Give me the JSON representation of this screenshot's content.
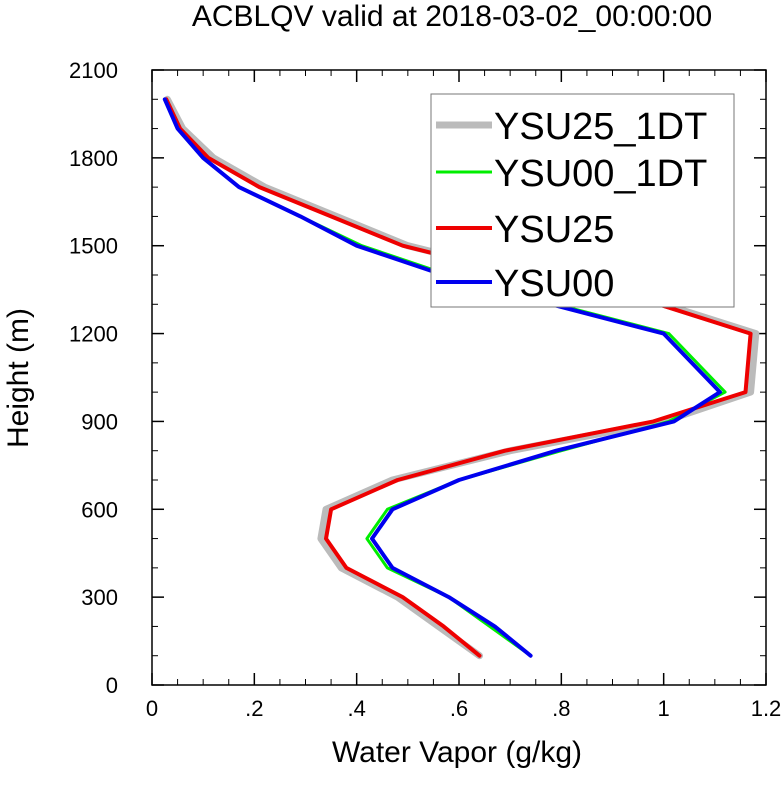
{
  "chart_data": {
    "type": "line",
    "title": "ACBLQV valid at 2018-03-02_00:00:00",
    "xlabel": "Water Vapor (g/kg)",
    "ylabel": "Height (m)",
    "xlim": [
      0,
      1.2
    ],
    "ylim": [
      0,
      2100
    ],
    "x_ticks": [
      0,
      0.2,
      0.4,
      0.6,
      0.8,
      1.0,
      1.2
    ],
    "x_tick_labels": [
      "0",
      ".2",
      ".4",
      ".6",
      ".8",
      "1",
      "1.2"
    ],
    "y_ticks": [
      0,
      300,
      600,
      900,
      1200,
      1500,
      1800,
      2100
    ],
    "y_tick_labels": [
      "0",
      "300",
      "600",
      "900",
      "1200",
      "1500",
      "1800",
      "2100"
    ],
    "grid": false,
    "legend_position": "top-right",
    "series": [
      {
        "name": "YSU25_1DT",
        "color": "#bbbbbb",
        "points": [
          [
            0.64,
            100
          ],
          [
            0.56,
            200
          ],
          [
            0.48,
            300
          ],
          [
            0.37,
            400
          ],
          [
            0.33,
            500
          ],
          [
            0.34,
            600
          ],
          [
            0.47,
            700
          ],
          [
            0.7,
            800
          ],
          [
            1.0,
            900
          ],
          [
            1.17,
            1000
          ],
          [
            1.18,
            1200
          ],
          [
            1.0,
            1300
          ],
          [
            0.73,
            1400
          ],
          [
            0.5,
            1500
          ],
          [
            0.36,
            1600
          ],
          [
            0.22,
            1700
          ],
          [
            0.12,
            1800
          ],
          [
            0.06,
            1900
          ],
          [
            0.03,
            2000
          ]
        ]
      },
      {
        "name": "YSU00_1DT",
        "color": "#00ee00",
        "points": [
          [
            0.74,
            100
          ],
          [
            0.66,
            200
          ],
          [
            0.58,
            300
          ],
          [
            0.46,
            400
          ],
          [
            0.42,
            500
          ],
          [
            0.46,
            600
          ],
          [
            0.6,
            700
          ],
          [
            0.8,
            800
          ],
          [
            1.01,
            900
          ],
          [
            1.12,
            1000
          ],
          [
            1.01,
            1200
          ],
          [
            0.79,
            1300
          ],
          [
            0.58,
            1400
          ],
          [
            0.41,
            1500
          ],
          [
            0.29,
            1600
          ],
          [
            0.17,
            1700
          ],
          [
            0.1,
            1800
          ],
          [
            0.05,
            1900
          ],
          [
            0.025,
            2000
          ]
        ]
      },
      {
        "name": "YSU25",
        "color": "#ee0000",
        "points": [
          [
            0.64,
            100
          ],
          [
            0.57,
            200
          ],
          [
            0.49,
            300
          ],
          [
            0.38,
            400
          ],
          [
            0.34,
            500
          ],
          [
            0.35,
            600
          ],
          [
            0.48,
            700
          ],
          [
            0.69,
            800
          ],
          [
            0.98,
            900
          ],
          [
            1.16,
            1000
          ],
          [
            1.17,
            1200
          ],
          [
            0.99,
            1300
          ],
          [
            0.72,
            1400
          ],
          [
            0.49,
            1500
          ],
          [
            0.35,
            1600
          ],
          [
            0.21,
            1700
          ],
          [
            0.11,
            1800
          ],
          [
            0.055,
            1900
          ],
          [
            0.028,
            2000
          ]
        ]
      },
      {
        "name": "YSU00",
        "color": "#0000ee",
        "points": [
          [
            0.74,
            100
          ],
          [
            0.67,
            200
          ],
          [
            0.58,
            300
          ],
          [
            0.47,
            400
          ],
          [
            0.43,
            500
          ],
          [
            0.47,
            600
          ],
          [
            0.6,
            700
          ],
          [
            0.79,
            800
          ],
          [
            1.02,
            900
          ],
          [
            1.11,
            1000
          ],
          [
            1.0,
            1200
          ],
          [
            0.78,
            1300
          ],
          [
            0.57,
            1400
          ],
          [
            0.4,
            1500
          ],
          [
            0.29,
            1600
          ],
          [
            0.17,
            1700
          ],
          [
            0.1,
            1800
          ],
          [
            0.05,
            1900
          ],
          [
            0.025,
            2000
          ]
        ]
      }
    ]
  }
}
